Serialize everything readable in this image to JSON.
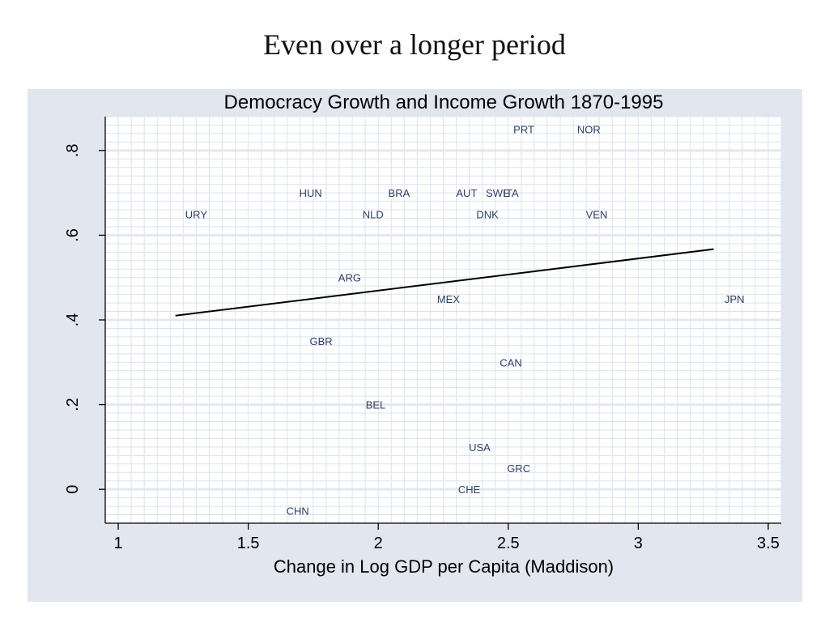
{
  "slide": {
    "title": "Even over a longer period"
  },
  "chart_data": {
    "type": "scatter",
    "title": "Democracy Growth and Income Growth 1870-1995",
    "xlabel": "Change in Log GDP per Capita (Maddison)",
    "ylabel": "",
    "xlim": [
      0.95,
      3.55
    ],
    "ylim": [
      -0.08,
      0.88
    ],
    "xticks": [
      1,
      1.5,
      2,
      2.5,
      3,
      3.5
    ],
    "xtick_labels": [
      "1",
      "1.5",
      "2",
      "2.5",
      "3",
      "3.5"
    ],
    "yticks": [
      0,
      0.2,
      0.4,
      0.6,
      0.8
    ],
    "ytick_labels": [
      "0",
      ".2",
      ".4",
      ".6",
      ".8"
    ],
    "grid": true,
    "legend": "none",
    "points": [
      {
        "label": "PRT",
        "x": 2.56,
        "y": 0.85
      },
      {
        "label": "NOR",
        "x": 2.81,
        "y": 0.85
      },
      {
        "label": "HUN",
        "x": 1.74,
        "y": 0.7
      },
      {
        "label": "BRA",
        "x": 2.08,
        "y": 0.7
      },
      {
        "label": "AUT",
        "x": 2.34,
        "y": 0.7
      },
      {
        "label": "SWE",
        "x": 2.46,
        "y": 0.7
      },
      {
        "label": "ITA",
        "x": 2.51,
        "y": 0.7
      },
      {
        "label": "URY",
        "x": 1.3,
        "y": 0.65
      },
      {
        "label": "NLD",
        "x": 1.98,
        "y": 0.65
      },
      {
        "label": "DNK",
        "x": 2.42,
        "y": 0.65
      },
      {
        "label": "VEN",
        "x": 2.84,
        "y": 0.65
      },
      {
        "label": "ARG",
        "x": 1.89,
        "y": 0.5
      },
      {
        "label": "MEX",
        "x": 2.27,
        "y": 0.45
      },
      {
        "label": "JPN",
        "x": 3.37,
        "y": 0.45
      },
      {
        "label": "GBR",
        "x": 1.78,
        "y": 0.35
      },
      {
        "label": "CAN",
        "x": 2.51,
        "y": 0.3
      },
      {
        "label": "BEL",
        "x": 1.99,
        "y": 0.2
      },
      {
        "label": "USA",
        "x": 2.39,
        "y": 0.1
      },
      {
        "label": "GRC",
        "x": 2.54,
        "y": 0.05
      },
      {
        "label": "CHE",
        "x": 2.35,
        "y": 0.0
      },
      {
        "label": "CHN",
        "x": 1.69,
        "y": -0.05
      }
    ],
    "fit_line": {
      "x": [
        1.22,
        3.29
      ],
      "y": [
        0.41,
        0.567
      ]
    }
  }
}
